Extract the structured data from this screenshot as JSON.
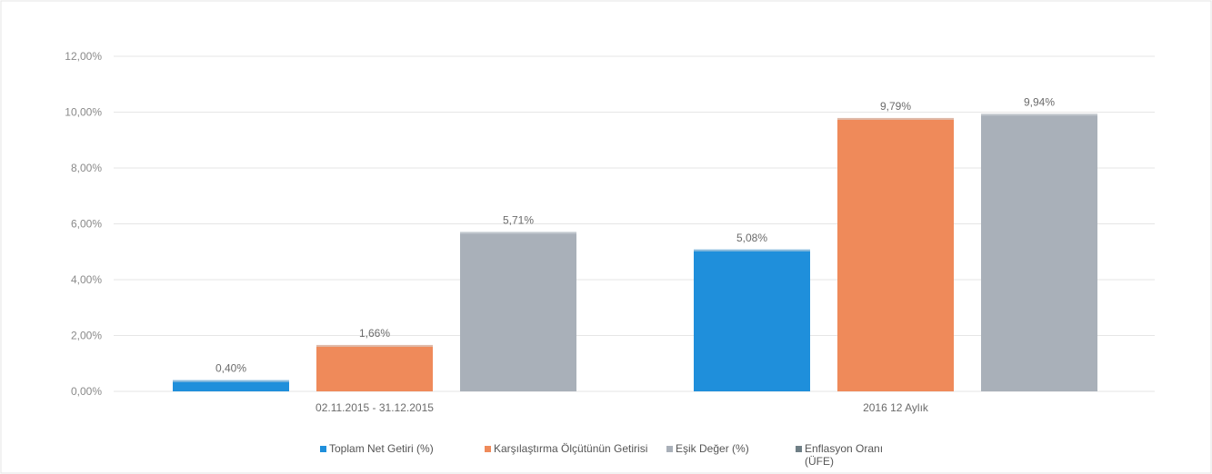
{
  "chart_data": {
    "type": "bar",
    "categories": [
      "02.11.2015 - 31.12.2015",
      "2016 12 Aylık"
    ],
    "series": [
      {
        "name": "Toplam Net Getiri (%)",
        "values": [
          0.4,
          5.08
        ],
        "labels": [
          "0,40%",
          "5,08%"
        ],
        "color": "#1f8fdb"
      },
      {
        "name": "Karşılaştırma Ölçütünün Getirisi",
        "values": [
          1.66,
          9.79
        ],
        "labels": [
          "1,66%",
          "9,79%"
        ],
        "color": "#ef8a5a"
      },
      {
        "name": "Eşik Değer (%)",
        "values": [
          5.71,
          9.94
        ],
        "labels": [
          "5,71%",
          "9,94%"
        ],
        "color": "#a9b0b9"
      },
      {
        "name": "Enflasyon Oranı (ÜFE)",
        "values": [
          null,
          null
        ],
        "labels": [
          "",
          ""
        ],
        "color": "#6f7f86"
      }
    ],
    "ylim": [
      0,
      12
    ],
    "yticks": [
      "0,00%",
      "2,00%",
      "4,00%",
      "6,00%",
      "8,00%",
      "10,00%",
      "12,00%"
    ],
    "grid": true,
    "legend_position": "bottom"
  }
}
